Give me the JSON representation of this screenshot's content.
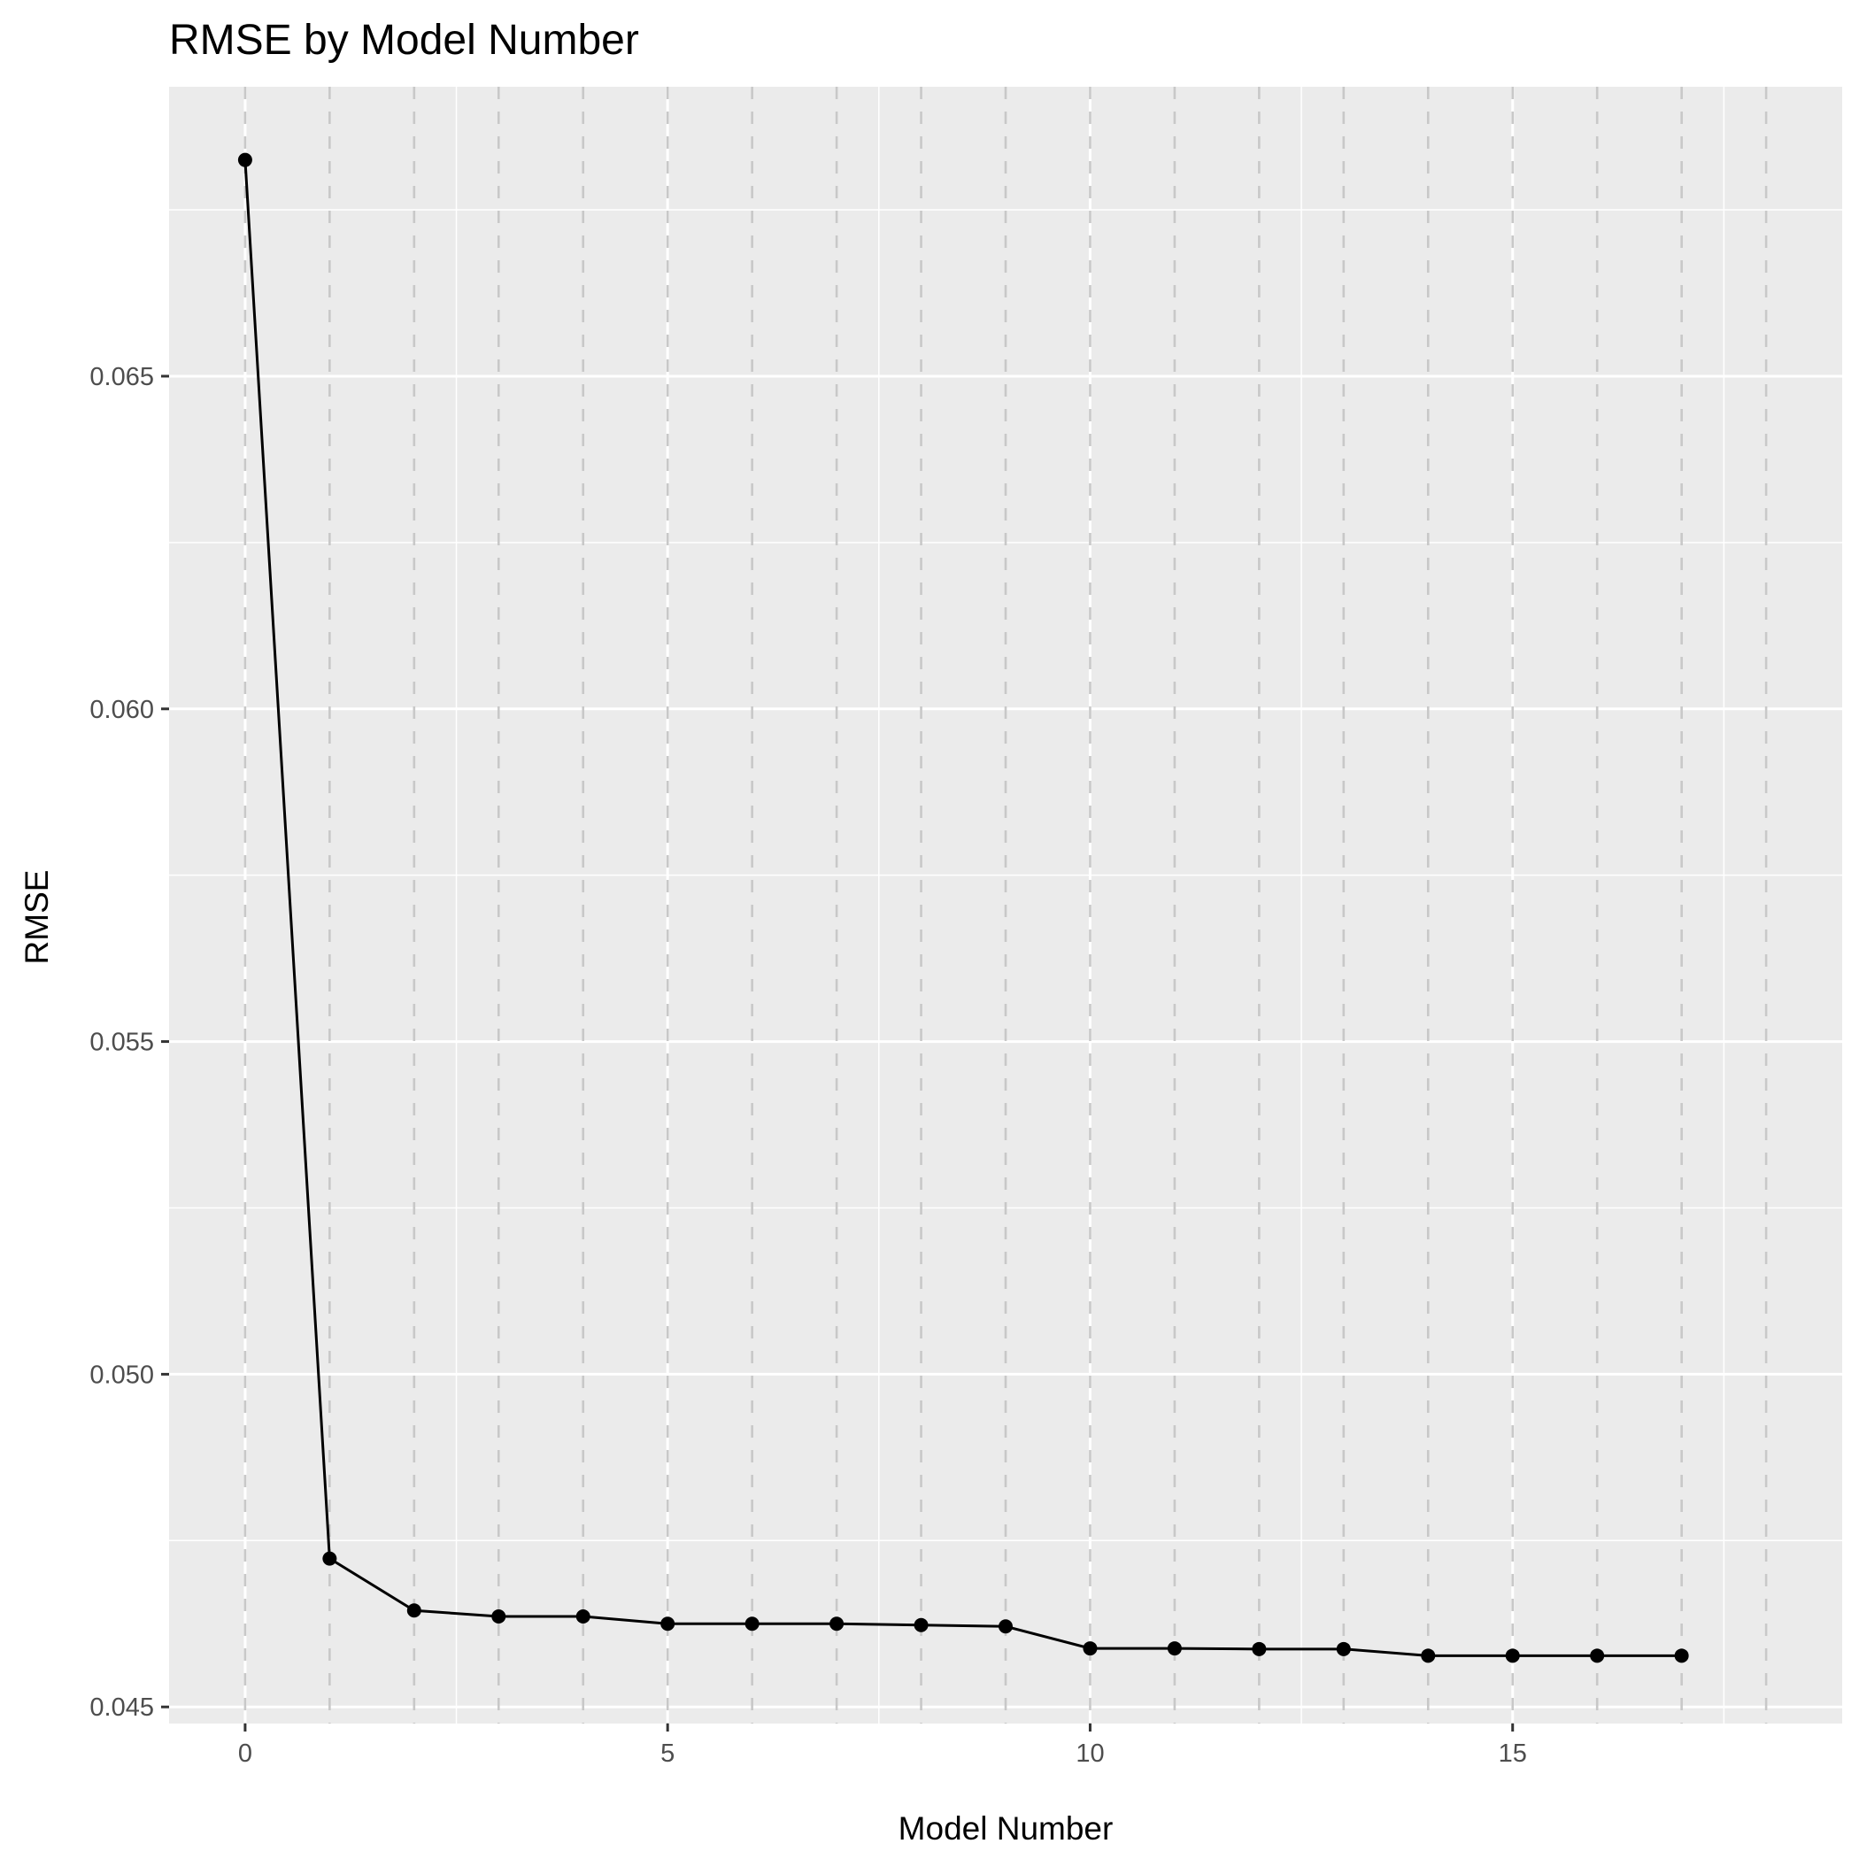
{
  "chart_data": {
    "type": "line",
    "title": "RMSE by Model Number",
    "xlabel": "Model Number",
    "ylabel": "RMSE",
    "xlim": [
      -0.9,
      18.9
    ],
    "ylim": [
      0.04475,
      0.06935
    ],
    "x_ticks": [
      0,
      5,
      10,
      15
    ],
    "x_tick_labels": [
      "0",
      "5",
      "10",
      "15"
    ],
    "y_ticks": [
      0.045,
      0.05,
      0.055,
      0.06,
      0.065
    ],
    "y_tick_labels": [
      "0.045",
      "0.050",
      "0.055",
      "0.060",
      "0.065"
    ],
    "grid": true,
    "reference_lines_x": [
      0,
      1,
      2,
      3,
      4,
      5,
      6,
      7,
      8,
      9,
      10,
      11,
      12,
      13,
      14,
      15,
      16,
      17,
      18
    ],
    "x": [
      0,
      1,
      2,
      3,
      4,
      5,
      6,
      7,
      8,
      9,
      10,
      11,
      12,
      13,
      14,
      15,
      16,
      17
    ],
    "values": [
      0.06825,
      0.04723,
      0.04645,
      0.04636,
      0.04636,
      0.04625,
      0.04625,
      0.04625,
      0.04623,
      0.04621,
      0.04588,
      0.04588,
      0.04587,
      0.04587,
      0.04577,
      0.04577,
      0.04577,
      0.04577
    ],
    "colors": {
      "panel": "#ebebeb",
      "line": "#000000",
      "point": "#000000",
      "reference_line": "#c8c8c8"
    }
  }
}
